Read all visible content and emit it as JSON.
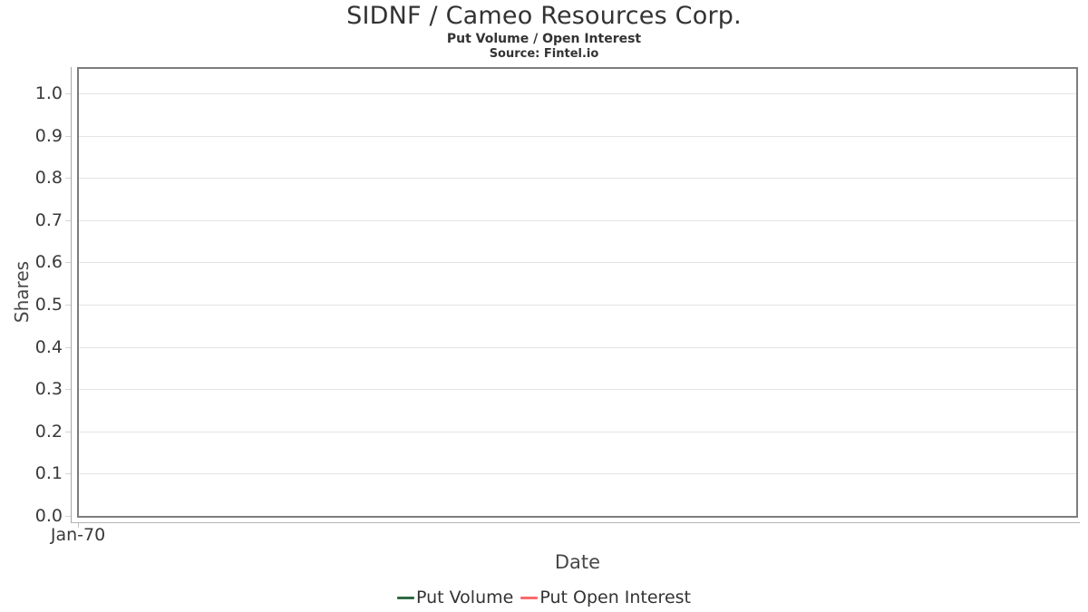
{
  "chart_data": {
    "type": "line",
    "title": "SIDNF / Cameo Resources Corp.",
    "subtitle": "Put Volume / Open Interest",
    "source": "Source: Fintel.io",
    "xlabel": "Date",
    "ylabel": "Shares",
    "x_ticks": [
      "Jan-70"
    ],
    "y_ticks": [
      {
        "label": "0.0",
        "value": 0.0
      },
      {
        "label": "0.1",
        "value": 0.1
      },
      {
        "label": "0.2",
        "value": 0.2
      },
      {
        "label": "0.3",
        "value": 0.3
      },
      {
        "label": "0.4",
        "value": 0.4
      },
      {
        "label": "0.5",
        "value": 0.5
      },
      {
        "label": "0.6",
        "value": 0.6
      },
      {
        "label": "0.7",
        "value": 0.7
      },
      {
        "label": "0.8",
        "value": 0.8
      },
      {
        "label": "0.9",
        "value": 0.9
      },
      {
        "label": "1.0",
        "value": 1.0
      }
    ],
    "ylim": [
      0,
      1.06
    ],
    "grid": "horizontal",
    "legend": {
      "position": "bottom",
      "entries": [
        {
          "name": "Put Volume",
          "color": "#2e6b42"
        },
        {
          "name": "Put Open Interest",
          "color": "#fb6b6b"
        }
      ]
    },
    "series": [
      {
        "name": "Put Volume",
        "color": "#2e6b42",
        "x": [],
        "values": []
      },
      {
        "name": "Put Open Interest",
        "color": "#fb6b6b",
        "x": [],
        "values": []
      }
    ],
    "colors": {
      "plot_border": "#7d7d7d",
      "gridline": "#e4e4e4",
      "axis_line": "#a8a8a8",
      "text": "#333333"
    }
  }
}
